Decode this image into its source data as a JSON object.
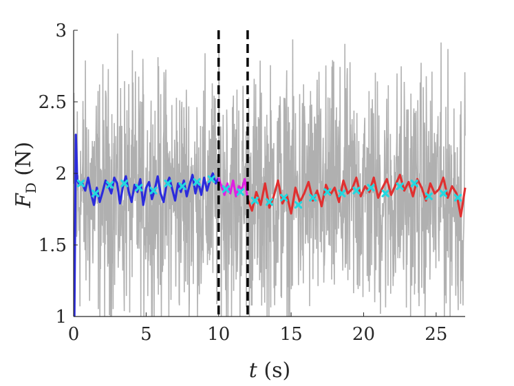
{
  "chart_data": {
    "type": "line",
    "xlabel": {
      "symbol": "t",
      "unit": "(s)"
    },
    "ylabel": {
      "symbol": "F",
      "subscript": "D",
      "unit": "(N)"
    },
    "xlim": [
      0,
      27
    ],
    "ylim": [
      1,
      3
    ],
    "xticks": [
      0,
      5,
      10,
      15,
      20,
      25
    ],
    "yticks": [
      1,
      1.5,
      2,
      2.5,
      3
    ],
    "ytick_labels": [
      "1",
      "1.5",
      "2",
      "2.5",
      "3"
    ],
    "grid": false,
    "legend": "none",
    "vertical_markers": [
      10,
      12
    ],
    "colors": {
      "raw": "#b0b0b0",
      "segment1": "#2b2bdc",
      "segment2": "#e020e0",
      "segment3": "#e03030",
      "markers": "#22d8e0",
      "vlines": "#000000"
    },
    "raw_signal": {
      "mean": 1.85,
      "spread": 0.42,
      "samples": 1300
    },
    "segments": [
      {
        "name": "segment1",
        "x": [
          0.05,
          0.15,
          0.25,
          0.4,
          0.6,
          0.8,
          1.0,
          1.2,
          1.4,
          1.6,
          1.8,
          2.0,
          2.2,
          2.4,
          2.6,
          2.8,
          3.0,
          3.2,
          3.4,
          3.6,
          3.8,
          4.0,
          4.2,
          4.4,
          4.6,
          4.8,
          5.0,
          5.2,
          5.4,
          5.6,
          5.8,
          6.0,
          6.2,
          6.4,
          6.6,
          6.8,
          7.0,
          7.2,
          7.4,
          7.6,
          7.8,
          8.0,
          8.2,
          8.4,
          8.6,
          8.8,
          9.0,
          9.2,
          9.4,
          9.6,
          9.8,
          10.0
        ],
        "y": [
          1.0,
          2.27,
          1.95,
          1.92,
          1.93,
          1.88,
          1.97,
          1.86,
          1.78,
          1.9,
          1.8,
          1.87,
          1.95,
          1.91,
          1.86,
          1.97,
          1.93,
          1.79,
          1.91,
          1.98,
          1.87,
          1.8,
          1.92,
          1.87,
          1.96,
          1.78,
          1.9,
          1.94,
          1.82,
          1.89,
          1.98,
          1.86,
          1.8,
          1.92,
          1.97,
          1.89,
          1.81,
          1.93,
          1.87,
          1.95,
          1.84,
          1.92,
          1.99,
          1.86,
          1.94,
          1.85,
          1.97,
          1.88,
          1.95,
          2.0,
          1.93,
          1.97
        ]
      },
      {
        "name": "segment2",
        "x": [
          10.0,
          10.2,
          10.4,
          10.6,
          10.8,
          11.0,
          11.2,
          11.4,
          11.6,
          11.8,
          12.0
        ],
        "y": [
          1.97,
          1.91,
          1.85,
          1.93,
          1.86,
          1.95,
          1.84,
          1.91,
          1.89,
          1.96,
          1.82
        ]
      },
      {
        "name": "segment3",
        "x": [
          12.0,
          12.3,
          12.6,
          12.9,
          13.2,
          13.5,
          13.8,
          14.1,
          14.4,
          14.7,
          15.0,
          15.3,
          15.6,
          15.9,
          16.2,
          16.5,
          16.8,
          17.1,
          17.4,
          17.7,
          18.0,
          18.3,
          18.6,
          18.9,
          19.2,
          19.5,
          19.8,
          20.1,
          20.4,
          20.7,
          21.0,
          21.3,
          21.6,
          21.9,
          22.2,
          22.5,
          22.8,
          23.1,
          23.4,
          23.7,
          24.0,
          24.3,
          24.6,
          24.9,
          25.2,
          25.5,
          25.8,
          26.1,
          26.4,
          26.7,
          27.0
        ],
        "y": [
          1.82,
          1.74,
          1.87,
          1.78,
          1.93,
          1.76,
          1.84,
          1.95,
          1.79,
          1.85,
          1.72,
          1.9,
          1.8,
          1.86,
          1.94,
          1.81,
          1.88,
          1.77,
          1.92,
          1.85,
          1.9,
          1.8,
          1.95,
          1.86,
          1.89,
          1.97,
          1.84,
          1.91,
          1.87,
          1.97,
          1.83,
          1.9,
          1.96,
          1.85,
          1.92,
          1.99,
          1.88,
          1.94,
          1.84,
          1.96,
          1.9,
          1.81,
          1.93,
          1.86,
          1.89,
          1.97,
          1.83,
          1.91,
          1.86,
          1.7,
          1.9
        ]
      }
    ],
    "markers": {
      "x": [
        0.5,
        1.5,
        2.5,
        3.5,
        4.5,
        5.5,
        6.5,
        7.5,
        8.5,
        9.5,
        10.5,
        11.5,
        12.5,
        13.5,
        14.5,
        15.5,
        16.5,
        17.5,
        18.5,
        19.5,
        20.5,
        21.5,
        22.5,
        23.5,
        24.5,
        25.5,
        26.5
      ],
      "y": [
        1.93,
        1.86,
        1.92,
        1.93,
        1.9,
        1.88,
        1.93,
        1.91,
        1.94,
        1.96,
        1.89,
        1.87,
        1.81,
        1.8,
        1.83,
        1.78,
        1.83,
        1.87,
        1.86,
        1.88,
        1.9,
        1.86,
        1.91,
        1.93,
        1.84,
        1.86,
        1.83
      ]
    }
  }
}
